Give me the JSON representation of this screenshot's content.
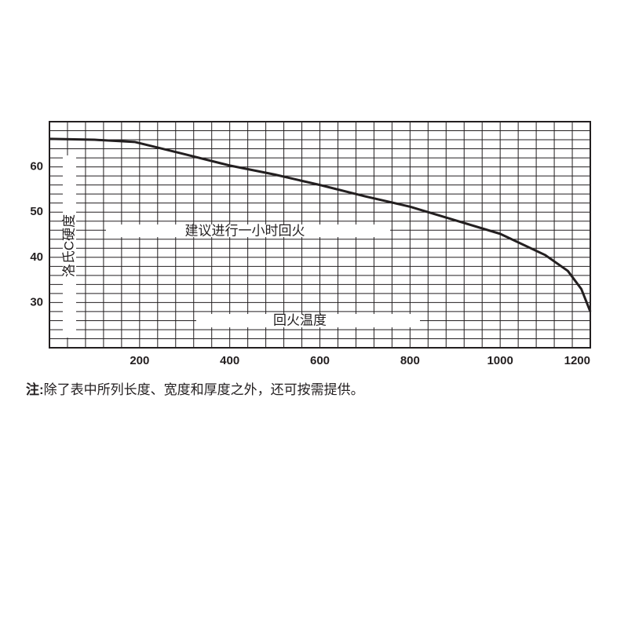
{
  "chart_data": {
    "type": "line",
    "ylabel": "洛氏C硬度",
    "xlabel": "回火温度",
    "annotation": "建议进行一小时回火",
    "note_label": "注:",
    "note": "除了表中所列长度、宽度和厚度之外，还可按需提供。",
    "x": [
      0,
      100,
      190,
      300,
      400,
      500,
      600,
      700,
      800,
      900,
      1000,
      1100,
      1150,
      1180,
      1200
    ],
    "series": [
      {
        "color": "#231f20",
        "values": [
          66.2,
          66,
          65.5,
          62.8,
          60.3,
          58.3,
          56,
          53.5,
          51.2,
          48.2,
          45.2,
          40.5,
          37,
          33,
          28
        ]
      }
    ],
    "xlim": [
      0,
      1200
    ],
    "ylim": [
      20,
      70
    ],
    "xticks": [
      200,
      400,
      600,
      800,
      1000,
      1200
    ],
    "yticks": [
      30,
      40,
      50,
      60
    ],
    "grid": true,
    "xminor": 40,
    "yminor": 2
  }
}
